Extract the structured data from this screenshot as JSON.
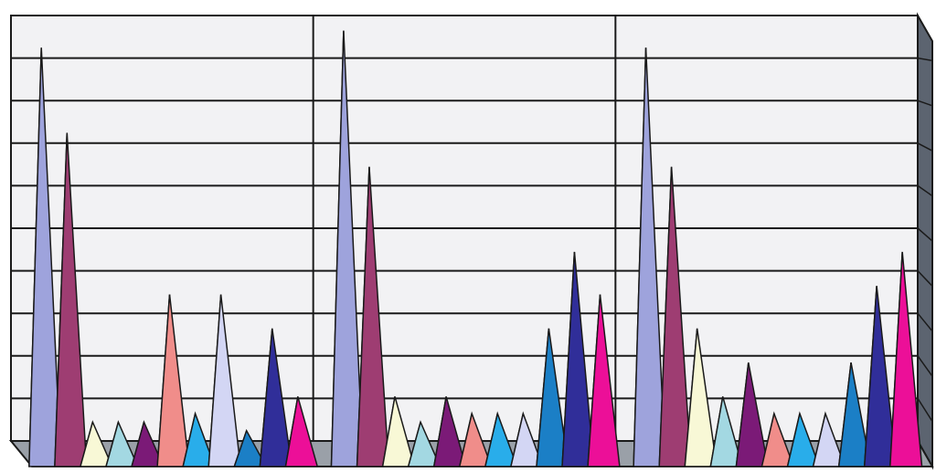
{
  "chart_data": {
    "type": "bar",
    "style": "3d-pyramid",
    "categories": [
      "",
      "",
      ""
    ],
    "ylim": [
      0,
      10
    ],
    "grid": true,
    "legend": "none",
    "background": "#f2f2f4",
    "series": [
      {
        "color": "#9ea3dc",
        "values": [
          9.2,
          9.6,
          9.2
        ]
      },
      {
        "color": "#9e3d72",
        "values": [
          7.2,
          6.4,
          6.4
        ]
      },
      {
        "color": "#f8f8d6",
        "values": [
          0.4,
          1.0,
          2.6
        ]
      },
      {
        "color": "#a3d8e2",
        "values": [
          0.4,
          0.4,
          1.0
        ]
      },
      {
        "color": "#7b1a77",
        "values": [
          0.4,
          1.0,
          1.8
        ]
      },
      {
        "color": "#f08d8a",
        "values": [
          3.4,
          0.6,
          0.6
        ]
      },
      {
        "color": "#29adea",
        "values": [
          0.6,
          0.6,
          0.6
        ]
      },
      {
        "color": "#d3d6f4",
        "values": [
          3.4,
          0.6,
          0.6
        ]
      },
      {
        "color": "#1b7fc6",
        "values": [
          0.2,
          2.6,
          1.8
        ]
      },
      {
        "color": "#302e99",
        "values": [
          2.6,
          4.4,
          3.6
        ]
      },
      {
        "color": "#ec0f98",
        "values": [
          1.0,
          3.4,
          4.4
        ]
      }
    ]
  }
}
